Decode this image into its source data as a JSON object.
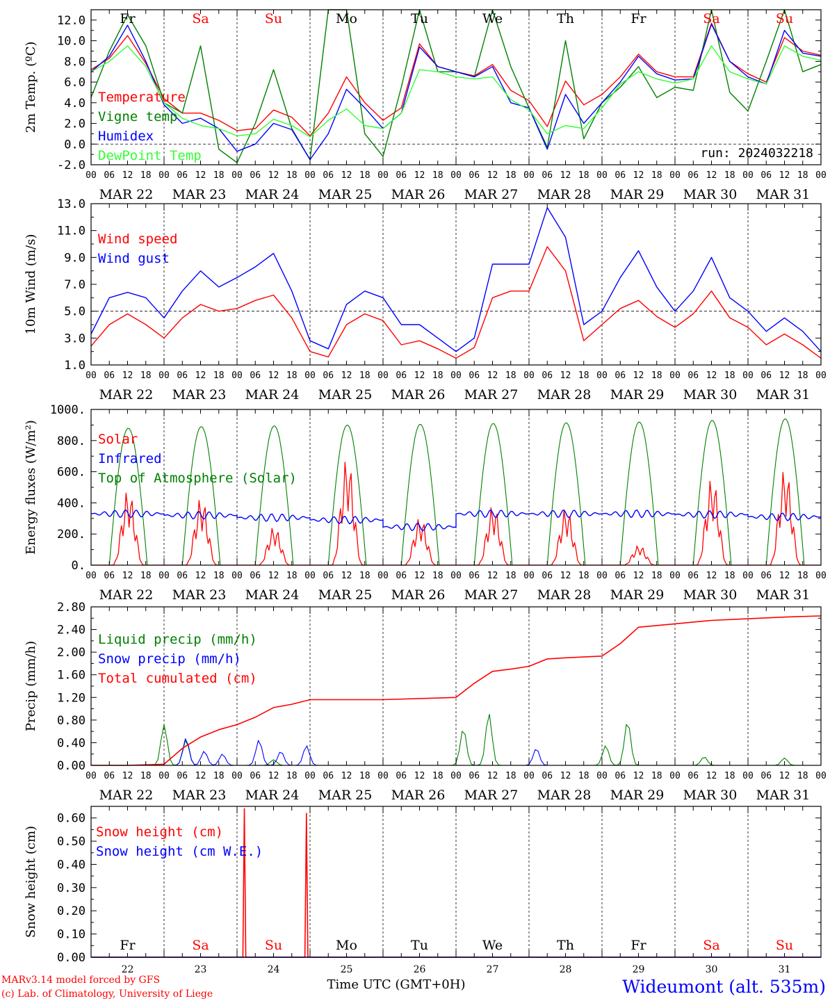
{
  "station": "Wideumont (alt. 535m)",
  "credits": [
    "MARv3.14 model forced by GFS",
    "(c) Lab. of Climatology, University of Liege"
  ],
  "run_label": "run: 2024032218",
  "time_axis_label": "Time UTC (GMT+0H)",
  "x_hour_ticks": [
    "00",
    "06",
    "12",
    "18"
  ],
  "date_labels": [
    "MAR 22",
    "MAR 23",
    "MAR 24",
    "MAR 25",
    "MAR 26",
    "MAR 27",
    "MAR 28",
    "MAR 29",
    "MAR 30",
    "MAR 31"
  ],
  "day_numbers": [
    "22",
    "23",
    "24",
    "25",
    "26",
    "27",
    "28",
    "29",
    "30",
    "31"
  ],
  "weekdays": [
    "Fr",
    "Sa",
    "Su",
    "Mo",
    "Tu",
    "We",
    "Th",
    "Fr",
    "Sa",
    "Su"
  ],
  "weekday_colors": [
    "#000000",
    "#ff0000",
    "#ff0000",
    "#000000",
    "#000000",
    "#000000",
    "#000000",
    "#000000",
    "#ff0000",
    "#ff0000"
  ],
  "colors": {
    "red": "#ff0000",
    "green": "#008000",
    "blue": "#0000ff",
    "lightgreen": "#33ff33"
  },
  "chart_data": [
    {
      "type": "line",
      "ylabel": "2m Temp. (ºC)",
      "ylim": [
        -2,
        13
      ],
      "yticks": [
        "-2.0",
        "0.0",
        "2.0",
        "4.0",
        "6.0",
        "8.0",
        "10.0",
        "12.0"
      ],
      "ytick_values": [
        -2,
        0,
        2,
        4,
        6,
        8,
        10,
        12
      ],
      "ref_line": 0,
      "x_days": [
        0,
        0.25,
        0.5,
        0.75,
        1,
        1.25,
        1.5,
        1.75,
        2,
        2.25,
        2.5,
        2.75,
        3,
        3.25,
        3.5,
        3.75,
        4,
        4.25,
        4.5,
        4.75,
        5,
        5.25,
        5.5,
        5.75,
        6,
        6.25,
        6.5,
        6.75,
        7,
        7.25,
        7.5,
        7.75,
        8,
        8.25,
        8.5,
        8.75,
        9,
        9.25,
        9.5,
        9.75,
        10
      ],
      "series": [
        {
          "name": "Temperature",
          "color": "#ff0000",
          "values": [
            7.2,
            8.3,
            10.5,
            7.8,
            4.4,
            3.0,
            3.0,
            2.3,
            1.3,
            1.5,
            3.3,
            2.6,
            0.8,
            3.0,
            6.5,
            4.0,
            2.3,
            3.5,
            9.7,
            7.5,
            7.0,
            6.6,
            7.7,
            5.2,
            4.2,
            1.7,
            6.1,
            3.8,
            4.8,
            6.5,
            8.7,
            7.0,
            6.5,
            6.5,
            11.7,
            8.0,
            6.8,
            6.0,
            10.3,
            9.0,
            8.6
          ]
        },
        {
          "name": "Vigne temp",
          "color": "#008000",
          "values": [
            4.5,
            9.0,
            12.5,
            9.5,
            4.0,
            3.0,
            9.5,
            -0.5,
            -1.8,
            2.0,
            7.2,
            1.5,
            -1.5,
            13.0,
            13.0,
            1.0,
            -1.2,
            5.5,
            13.0,
            7.0,
            7.0,
            6.5,
            13.0,
            7.5,
            3.5,
            -0.3,
            10.0,
            0.5,
            4.0,
            5.5,
            7.5,
            4.5,
            5.5,
            5.2,
            13.0,
            5.0,
            3.2,
            8.0,
            13.0,
            7.0,
            7.7
          ]
        },
        {
          "name": "Humidex",
          "color": "#0000ff",
          "values": [
            7.0,
            8.5,
            11.5,
            8.0,
            3.8,
            2.0,
            2.5,
            1.5,
            -0.7,
            0.0,
            2.0,
            1.4,
            -1.5,
            1.0,
            5.3,
            3.5,
            1.5,
            3.0,
            9.4,
            7.5,
            7.0,
            6.5,
            7.5,
            4.0,
            3.5,
            -0.5,
            4.8,
            2.0,
            4.0,
            6.0,
            8.5,
            6.8,
            6.2,
            6.3,
            11.6,
            8.0,
            6.5,
            5.8,
            11.0,
            8.8,
            8.5
          ]
        },
        {
          "name": "DewPoint Temp",
          "color": "#33ff33",
          "values": [
            7.0,
            8.0,
            9.5,
            7.5,
            4.0,
            2.5,
            1.8,
            1.5,
            0.8,
            1.0,
            2.4,
            1.8,
            0.7,
            2.3,
            3.4,
            1.8,
            1.5,
            3.0,
            7.2,
            7.0,
            6.5,
            6.3,
            6.5,
            4.3,
            3.3,
            1.0,
            1.8,
            1.5,
            3.5,
            5.8,
            7.0,
            6.3,
            5.9,
            6.3,
            9.5,
            7.0,
            6.3,
            5.8,
            9.5,
            8.5,
            8.1
          ]
        }
      ]
    },
    {
      "type": "line",
      "ylabel": "10m Wind (m/s)",
      "ylim": [
        1,
        13
      ],
      "yticks": [
        "1.0",
        "3.0",
        "5.0",
        "7.0",
        "9.0",
        "11.0",
        "13.0"
      ],
      "ytick_values": [
        1,
        3,
        5,
        7,
        9,
        11,
        13
      ],
      "ref_line": 5,
      "x_days": [
        0,
        0.25,
        0.5,
        0.75,
        1,
        1.25,
        1.5,
        1.75,
        2,
        2.25,
        2.5,
        2.75,
        3,
        3.25,
        3.5,
        3.75,
        4,
        4.25,
        4.5,
        4.75,
        5,
        5.25,
        5.5,
        5.75,
        6,
        6.25,
        6.5,
        6.75,
        7,
        7.25,
        7.5,
        7.75,
        8,
        8.25,
        8.5,
        8.75,
        9,
        9.25,
        9.5,
        9.75,
        10
      ],
      "series": [
        {
          "name": "Wind speed",
          "color": "#ff0000",
          "values": [
            2.4,
            4.0,
            4.8,
            4.0,
            3.0,
            4.5,
            5.5,
            5.0,
            5.2,
            5.8,
            6.2,
            4.5,
            2.0,
            1.6,
            4.0,
            4.8,
            4.3,
            2.5,
            2.8,
            2.2,
            1.5,
            2.3,
            6.0,
            6.5,
            6.5,
            9.8,
            8.0,
            2.8,
            4.0,
            5.2,
            5.8,
            4.6,
            3.8,
            4.8,
            6.5,
            4.5,
            3.8,
            2.5,
            3.3,
            2.5,
            1.5
          ]
        },
        {
          "name": "Wind gust",
          "color": "#0000ff",
          "values": [
            3.3,
            6.0,
            6.4,
            6.0,
            4.5,
            6.5,
            8.0,
            6.8,
            7.5,
            8.3,
            9.3,
            6.5,
            2.8,
            2.2,
            5.5,
            6.5,
            6.0,
            4.0,
            4.0,
            3.0,
            2.0,
            3.0,
            8.5,
            8.5,
            8.5,
            12.7,
            10.5,
            4.0,
            5.0,
            7.5,
            9.5,
            6.8,
            5.0,
            6.5,
            9.0,
            6.0,
            5.0,
            3.5,
            4.5,
            3.5,
            2.0
          ]
        }
      ]
    },
    {
      "type": "line",
      "ylabel": "Energy fluxes (W/m²)",
      "ylim": [
        0,
        1000
      ],
      "yticks": [
        "0.",
        "200.",
        "400.",
        "600.",
        "800.",
        "1000."
      ],
      "ytick_values": [
        0,
        200,
        400,
        600,
        800,
        1000
      ],
      "day_peaks": {
        "Top of Atmosphere (Solar)": [
          880,
          890,
          895,
          900,
          905,
          910,
          915,
          920,
          930,
          940
        ],
        "Solar": [
          490,
          440,
          250,
          700,
          310,
          390,
          370,
          130,
          570,
          630
        ],
        "Infrared": [
          330,
          320,
          305,
          290,
          245,
          330,
          330,
          330,
          325,
          310
        ]
      },
      "series": [
        {
          "name": "Solar",
          "color": "#ff0000"
        },
        {
          "name": "Infrared",
          "color": "#0000ff"
        },
        {
          "name": "Top of Atmosphere (Solar)",
          "color": "#008000"
        }
      ]
    },
    {
      "type": "line",
      "ylabel": "Precip (mm/h)",
      "ylim": [
        0,
        2.8
      ],
      "yticks": [
        "0.00",
        "0.40",
        "0.80",
        "1.20",
        "1.60",
        "2.00",
        "2.40",
        "2.80"
      ],
      "ytick_values": [
        0,
        0.4,
        0.8,
        1.2,
        1.6,
        2,
        2.4,
        2.8
      ],
      "x_days": [
        0,
        0.5,
        1,
        1.25,
        1.5,
        1.75,
        2,
        2.25,
        2.5,
        2.75,
        3,
        3.5,
        4,
        5,
        5.25,
        5.5,
        5.75,
        6,
        6.25,
        6.5,
        7,
        7.25,
        7.5,
        8,
        8.5,
        9,
        9.5,
        10
      ],
      "series": [
        {
          "name": "Liquid precip (mm/h)",
          "color": "#008000",
          "peaks": [
            [
              1.0,
              0.72
            ],
            [
              1.3,
              0.45
            ],
            [
              2.5,
              0.1
            ],
            [
              5.1,
              0.65
            ],
            [
              5.45,
              0.92
            ],
            [
              7.05,
              0.35
            ],
            [
              7.35,
              0.78
            ],
            [
              8.4,
              0.15
            ],
            [
              9.5,
              0.13
            ]
          ]
        },
        {
          "name": "Snow precip (mm/h)",
          "color": "#0000ff",
          "peaks": [
            [
              1.3,
              0.48
            ],
            [
              1.55,
              0.25
            ],
            [
              1.8,
              0.2
            ],
            [
              2.3,
              0.45
            ],
            [
              2.6,
              0.25
            ],
            [
              2.95,
              0.35
            ],
            [
              6.1,
              0.3
            ]
          ]
        },
        {
          "name": "Total cumulated (cm)",
          "color": "#ff0000",
          "values": [
            0,
            0,
            0.02,
            0.3,
            0.5,
            0.63,
            0.72,
            0.85,
            1.02,
            1.08,
            1.16,
            1.16,
            1.16,
            1.2,
            1.45,
            1.66,
            1.7,
            1.75,
            1.88,
            1.9,
            1.93,
            2.15,
            2.44,
            2.5,
            2.56,
            2.59,
            2.62,
            2.64
          ]
        }
      ]
    },
    {
      "type": "line",
      "ylabel": "Snow height (cm)",
      "ylim": [
        0,
        0.65
      ],
      "yticks": [
        "0.00",
        "0.10",
        "0.20",
        "0.30",
        "0.40",
        "0.50",
        "0.60"
      ],
      "ytick_values": [
        0,
        0.1,
        0.2,
        0.3,
        0.4,
        0.5,
        0.6
      ],
      "series": [
        {
          "name": "Snow height (cm)",
          "color": "#ff0000",
          "peaks": [
            [
              2.1,
              0.64
            ],
            [
              2.95,
              0.62
            ]
          ]
        },
        {
          "name": "Snow height (cm W.E.)",
          "color": "#0000ff",
          "peaks": []
        }
      ]
    }
  ]
}
